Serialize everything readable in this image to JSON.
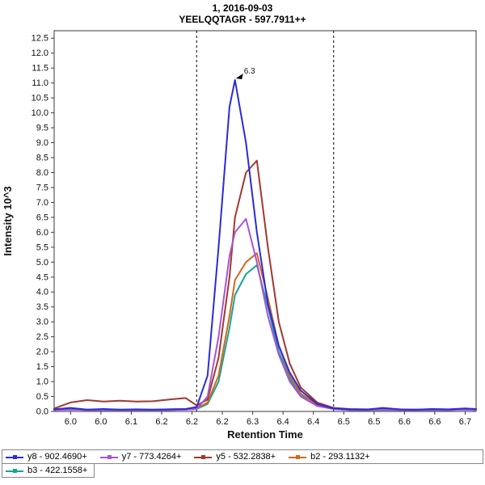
{
  "header": {
    "title_line1": "1, 2016-09-03",
    "title_line2": "YEELQQTAGR - 597.7911++"
  },
  "chart_data": {
    "type": "line",
    "title": "1, 2016-09-03",
    "subtitle": "YEELQQTAGR - 597.7911++",
    "xlabel": "Retention Time",
    "ylabel": "Intensity 10^3",
    "xlim": [
      5.95,
      6.72
    ],
    "ylim": [
      0,
      12.75
    ],
    "y_tick_labels": [
      "0.0",
      "0.5",
      "1.0",
      "1.5",
      "2.0",
      "2.5",
      "3.0",
      "3.5",
      "4.0",
      "4.5",
      "5.0",
      "5.5",
      "6.0",
      "6.5",
      "7.0",
      "7.5",
      "8.0",
      "8.5",
      "9.0",
      "9.5",
      "10.0",
      "10.5",
      "11.0",
      "11.5",
      "12.0",
      "12.5"
    ],
    "x_tick_labels": [
      "6.0",
      "6.0",
      "6.1",
      "6.2",
      "6.2",
      "6.2",
      "6.3",
      "6.4",
      "6.4",
      "6.5",
      "6.5",
      "6.6",
      "6.6",
      "6.7"
    ],
    "peak_boundaries": [
      6.21,
      6.46
    ],
    "annotation": {
      "text": "6.3",
      "x": 6.28,
      "y": 11.1
    },
    "x": [
      5.95,
      5.98,
      6.01,
      6.04,
      6.07,
      6.1,
      6.13,
      6.16,
      6.19,
      6.21,
      6.23,
      6.25,
      6.27,
      6.28,
      6.3,
      6.32,
      6.34,
      6.36,
      6.38,
      6.4,
      6.43,
      6.46,
      6.49,
      6.52,
      6.55,
      6.58,
      6.61,
      6.64,
      6.67,
      6.7,
      6.72
    ],
    "series": [
      {
        "name": "y8 - 902.4690+",
        "color": "#2b2bd9",
        "values": [
          0.07,
          0.12,
          0.06,
          0.08,
          0.06,
          0.07,
          0.06,
          0.07,
          0.08,
          0.15,
          1.2,
          5.5,
          10.2,
          11.1,
          9.0,
          6.0,
          3.6,
          2.2,
          1.3,
          0.7,
          0.25,
          0.1,
          0.07,
          0.06,
          0.12,
          0.07,
          0.06,
          0.08,
          0.07,
          0.1,
          0.08
        ]
      },
      {
        "name": "y7 - 773.4264+",
        "color": "#a855d4",
        "values": [
          0.05,
          0.06,
          0.05,
          0.05,
          0.05,
          0.05,
          0.05,
          0.05,
          0.06,
          0.08,
          0.5,
          2.5,
          5.2,
          6.0,
          6.45,
          5.0,
          3.2,
          1.9,
          1.0,
          0.5,
          0.18,
          0.08,
          0.05,
          0.05,
          0.06,
          0.05,
          0.05,
          0.05,
          0.05,
          0.06,
          0.05
        ]
      },
      {
        "name": "y5 - 532.2838+",
        "color": "#a0392f",
        "values": [
          0.1,
          0.3,
          0.38,
          0.33,
          0.36,
          0.33,
          0.34,
          0.4,
          0.45,
          0.2,
          0.4,
          1.8,
          4.5,
          6.5,
          8.0,
          8.4,
          5.5,
          3.0,
          1.6,
          0.8,
          0.3,
          0.12,
          0.08,
          0.07,
          0.08,
          0.07,
          0.06,
          0.07,
          0.06,
          0.08,
          0.07
        ]
      },
      {
        "name": "b2 - 293.1132+",
        "color": "#d2691e",
        "values": [
          0.06,
          0.08,
          0.06,
          0.07,
          0.06,
          0.06,
          0.06,
          0.07,
          0.08,
          0.1,
          0.3,
          1.2,
          3.2,
          4.4,
          5.0,
          5.3,
          3.8,
          2.2,
          1.2,
          0.6,
          0.22,
          0.1,
          0.06,
          0.05,
          0.06,
          0.05,
          0.05,
          0.06,
          0.05,
          0.06,
          0.05
        ]
      },
      {
        "name": "b3 - 422.1558+",
        "color": "#17a398",
        "values": [
          0.05,
          0.06,
          0.05,
          0.05,
          0.05,
          0.05,
          0.05,
          0.05,
          0.06,
          0.08,
          0.25,
          1.0,
          2.8,
          3.9,
          4.6,
          4.9,
          3.5,
          2.0,
          1.1,
          0.55,
          0.2,
          0.08,
          0.05,
          0.05,
          0.05,
          0.05,
          0.05,
          0.05,
          0.05,
          0.06,
          0.05
        ]
      }
    ]
  }
}
